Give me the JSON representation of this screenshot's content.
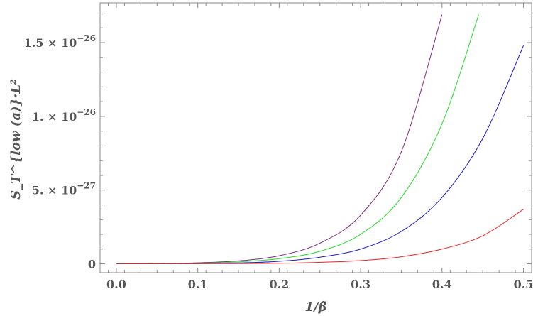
{
  "chart_data": {
    "type": "line",
    "title": "",
    "xlabel": "1/β̃",
    "ylabel": "S_T^{low (a)}·L²",
    "xlim": [
      -0.02,
      0.51
    ],
    "ylim": [
      -6e-28,
      1.77e-26
    ],
    "grid": false,
    "x_ticks": [
      {
        "value": 0.0,
        "label": "0.0"
      },
      {
        "value": 0.1,
        "label": "0.1"
      },
      {
        "value": 0.2,
        "label": "0.2"
      },
      {
        "value": 0.3,
        "label": "0.3"
      },
      {
        "value": 0.4,
        "label": "0.4"
      },
      {
        "value": 0.5,
        "label": "0.5"
      }
    ],
    "y_ticks": [
      {
        "value": 0,
        "mantissa": "0",
        "exp": ""
      },
      {
        "value": 5e-27,
        "mantissa": "5. × 10",
        "exp": "−27"
      },
      {
        "value": 1e-26,
        "mantissa": "1. × 10",
        "exp": "−26"
      },
      {
        "value": 1.5e-26,
        "mantissa": "1.5 × 10",
        "exp": "−26"
      }
    ],
    "series": [
      {
        "color": "#7b2a7b",
        "x": [
          0.0,
          0.05,
          0.1,
          0.15,
          0.2,
          0.25,
          0.3,
          0.35,
          0.4
        ],
        "y": [
          0,
          1e-29,
          7e-29,
          2e-28,
          5.5e-28,
          1.4e-27,
          3.3e-27,
          7.6e-27,
          1.69e-26
        ]
      },
      {
        "color": "#22dd22",
        "x": [
          0.0,
          0.05,
          0.1,
          0.15,
          0.2,
          0.25,
          0.3,
          0.35,
          0.4,
          0.445
        ],
        "y": [
          0,
          5e-30,
          4e-29,
          1.3e-28,
          3.5e-28,
          8.5e-28,
          2e-27,
          4.5e-27,
          9.5e-27,
          1.69e-26
        ]
      },
      {
        "color": "#1a1acc",
        "x": [
          0.0,
          0.05,
          0.1,
          0.15,
          0.2,
          0.25,
          0.3,
          0.35,
          0.4,
          0.45,
          0.5
        ],
        "y": [
          0,
          3e-30,
          2e-29,
          6e-29,
          1.7e-28,
          4.5e-28,
          1e-27,
          2.2e-27,
          4.5e-27,
          8.5e-27,
          1.48e-26
        ]
      },
      {
        "color": "#ee2222",
        "x": [
          0.0,
          0.05,
          0.1,
          0.15,
          0.2,
          0.25,
          0.3,
          0.35,
          0.4,
          0.45,
          0.5
        ],
        "y": [
          0,
          1e-30,
          5e-30,
          1.5e-29,
          4e-29,
          1e-28,
          2.2e-28,
          4.8e-28,
          1e-27,
          1.9e-27,
          3.7e-27
        ]
      }
    ]
  }
}
